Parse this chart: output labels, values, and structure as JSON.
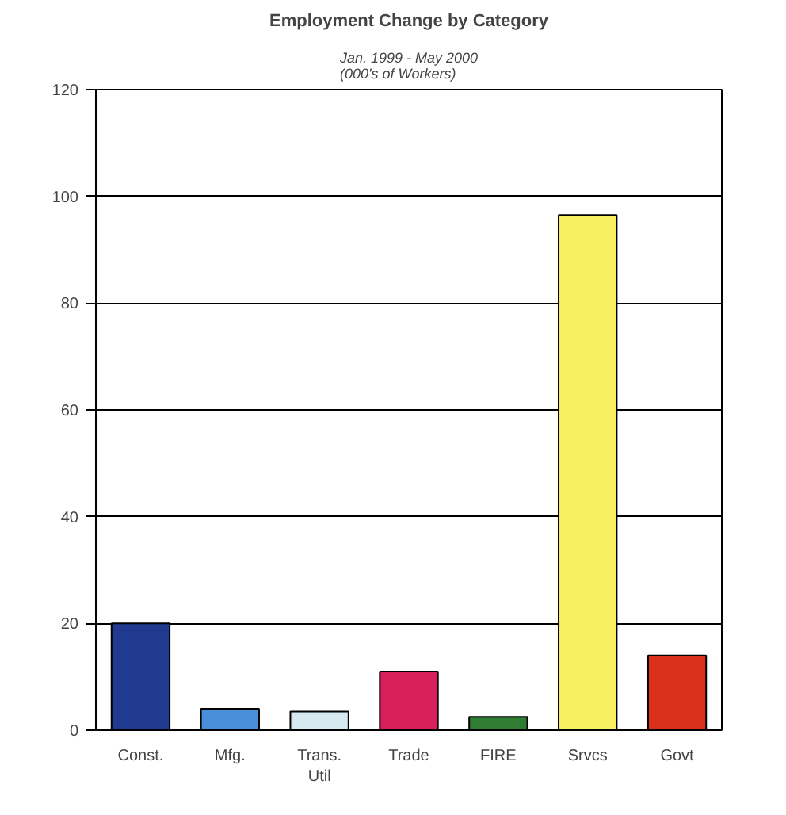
{
  "chart_data": {
    "type": "bar",
    "title": "Employment Change by Category",
    "subtitle": "Jan. 1999 - May 2000\n(000's of Workers)",
    "categories": [
      "Const.",
      "Mfg.",
      "Trans.\nUtil",
      "Trade",
      "FIRE",
      "Srvcs",
      "Govt"
    ],
    "values": [
      20,
      4,
      3.5,
      11,
      2.5,
      96.5,
      14
    ],
    "colors": [
      "#1f3a8f",
      "#4a90d9",
      "#d6e8f0",
      "#d81e5b",
      "#2e7d32",
      "#f7f060",
      "#d9301c"
    ],
    "ylim": [
      0,
      120
    ],
    "yticks": [
      0,
      20,
      40,
      60,
      80,
      100,
      120
    ],
    "grid": "y"
  }
}
